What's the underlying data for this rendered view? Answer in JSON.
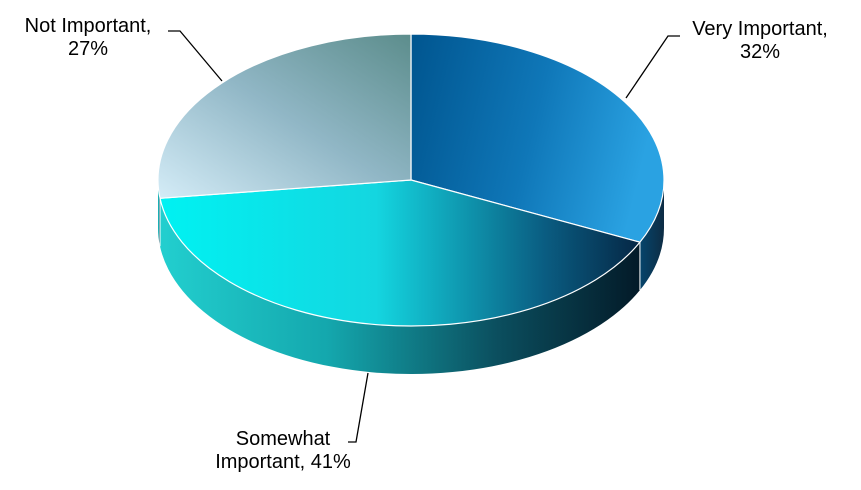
{
  "chart_data": {
    "type": "pie",
    "style": "3d-pie",
    "title": "",
    "legend": "none",
    "slices": [
      {
        "category": "Very Important",
        "percent_label": "32%",
        "value": 32,
        "color": "#0f77b8"
      },
      {
        "category": "Somewhat Important",
        "percent_label": "41%",
        "value": 41,
        "color": "#19f7f7"
      },
      {
        "category": "Not Important",
        "percent_label": "27%",
        "value": 27,
        "color": "#a8cde2"
      }
    ]
  }
}
